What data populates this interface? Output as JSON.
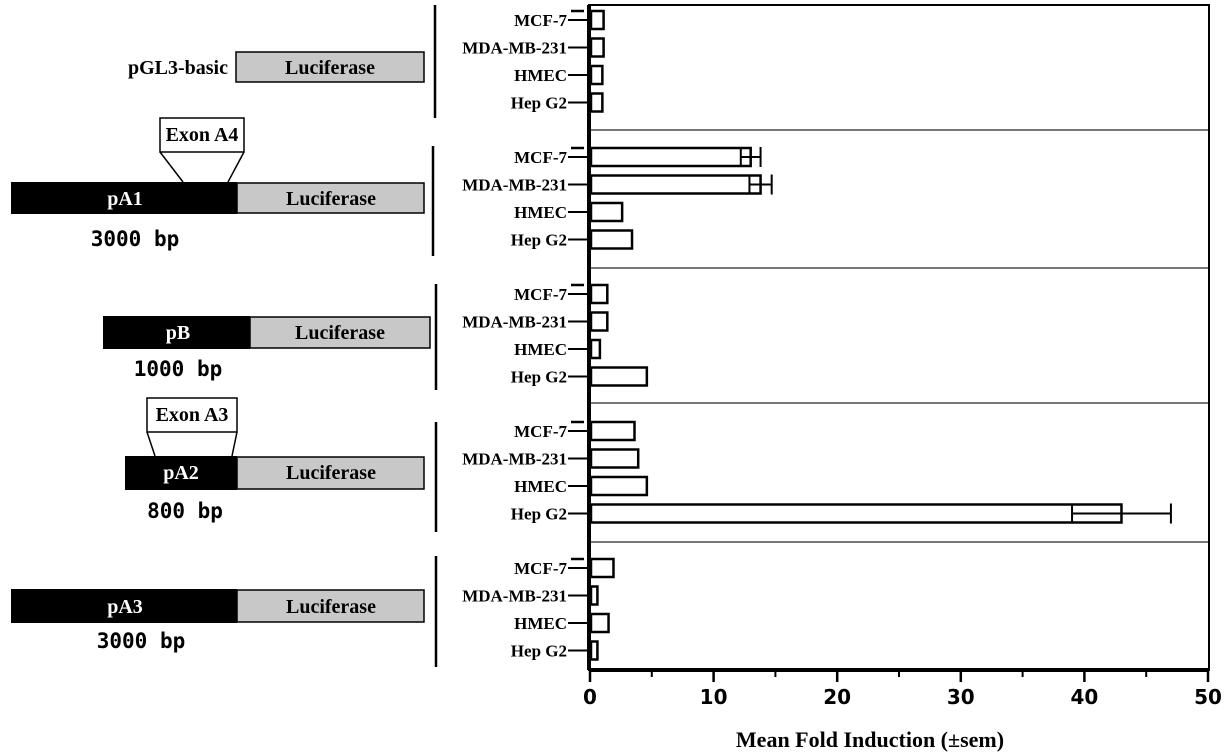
{
  "constructs": [
    {
      "id": "basic",
      "name": "pGL3-basic",
      "reporter": "Luciferase",
      "size": "",
      "exon": ""
    },
    {
      "id": "pA1",
      "name": "pA1",
      "reporter": "Luciferase",
      "size": "3000 bp",
      "exon": "Exon A4"
    },
    {
      "id": "pB",
      "name": "pB",
      "reporter": "Luciferase",
      "size": "1000 bp",
      "exon": ""
    },
    {
      "id": "pA2",
      "name": "pA2",
      "reporter": "Luciferase",
      "size": "800 bp",
      "exon": "Exon A3"
    },
    {
      "id": "pA3",
      "name": "pA3",
      "reporter": "Luciferase",
      "size": "3000 bp",
      "exon": ""
    }
  ],
  "chart_data": {
    "type": "bar",
    "orientation": "horizontal",
    "xlabel": "Mean Fold Induction (±sem)",
    "ylabel": "",
    "xlim": [
      0,
      50
    ],
    "xticks": [
      "0",
      "10",
      "20",
      "30",
      "40",
      "50"
    ],
    "groups": [
      {
        "construct": "pGL3-basic",
        "categories": [
          "MCF-7",
          "MDA-MB-231",
          "HMEC",
          "Hep G2"
        ],
        "values": [
          1.1,
          1.1,
          1.0,
          1.0
        ],
        "errors": [
          0,
          0,
          0,
          0
        ]
      },
      {
        "construct": "pA1",
        "categories": [
          "MCF-7",
          "MDA-MB-231",
          "HMEC",
          "Hep G2"
        ],
        "values": [
          13.0,
          13.8,
          2.6,
          3.4
        ],
        "errors": [
          0.8,
          0.9,
          0,
          0
        ]
      },
      {
        "construct": "pB",
        "categories": [
          "MCF-7",
          "MDA-MB-231",
          "HMEC",
          "Hep G2"
        ],
        "values": [
          1.4,
          1.4,
          0.8,
          4.6
        ],
        "errors": [
          0,
          0,
          0,
          0
        ]
      },
      {
        "construct": "pA2",
        "categories": [
          "MCF-7",
          "MDA-MB-231",
          "HMEC",
          "Hep G2"
        ],
        "values": [
          3.6,
          3.9,
          4.6,
          43.0
        ],
        "errors": [
          0,
          0,
          0,
          4.0
        ]
      },
      {
        "construct": "pA3",
        "categories": [
          "MCF-7",
          "MDA-MB-231",
          "HMEC",
          "Hep G2"
        ],
        "values": [
          1.9,
          0.6,
          1.5,
          0.6
        ],
        "errors": [
          0,
          0,
          0,
          0
        ]
      }
    ],
    "grid": false,
    "legend": "none"
  }
}
